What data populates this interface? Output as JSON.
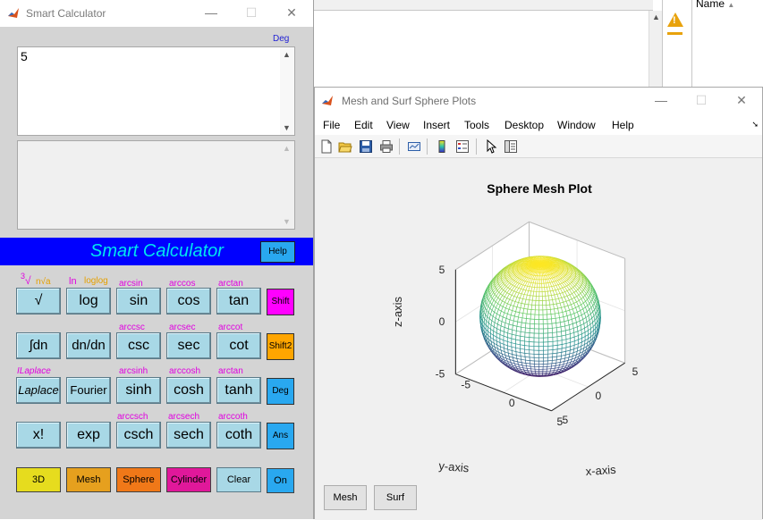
{
  "background_window": {
    "name_header": "Name"
  },
  "calculator": {
    "window_title": "Smart Calculator",
    "angle_mode_indicator": "Deg",
    "input_value": "5",
    "output_value": "",
    "banner_title": "Smart Calculator",
    "help_label": "Help",
    "rows": [
      {
        "labels": [
          "∛  n√a",
          "ln  loglog",
          "arcsin",
          "arccos",
          "arctan"
        ],
        "buttons": [
          "√",
          "log",
          "sin",
          "cos",
          "tan"
        ],
        "side": "Shift"
      },
      {
        "labels": [
          "",
          "",
          "arccsc",
          "arcsec",
          "arccot"
        ],
        "buttons": [
          "∫dn",
          "dn/dn",
          "csc",
          "sec",
          "cot"
        ],
        "side": "Shift2"
      },
      {
        "labels": [
          "ILaplace",
          "",
          "arcsinh",
          "arccosh",
          "arctan"
        ],
        "buttons": [
          "Laplace",
          "Fourier",
          "sinh",
          "cosh",
          "tanh"
        ],
        "side": "Deg"
      },
      {
        "labels": [
          "",
          "",
          "arccsch",
          "arcsech",
          "arccoth"
        ],
        "buttons": [
          "x!",
          "exp",
          "csch",
          "sech",
          "coth"
        ],
        "side": "Ans"
      }
    ],
    "bottom_buttons": [
      {
        "label": "3D",
        "color": "#e6dc1e"
      },
      {
        "label": "Mesh",
        "color": "#e6a01e"
      },
      {
        "label": "Sphere",
        "color": "#f07818"
      },
      {
        "label": "Cylinder",
        "color": "#e0189a"
      },
      {
        "label": "Clear",
        "color": "#a8d8e6"
      },
      {
        "label": "On",
        "color": "#29a8f0"
      }
    ],
    "side_colors": {
      "Shift": "#ff00ff",
      "Shift2": "#ffa500",
      "Deg": "#29a8f0",
      "Ans": "#29a8f0"
    }
  },
  "figure": {
    "window_title": "Mesh and Surf Sphere Plots",
    "menu": [
      "File",
      "Edit",
      "View",
      "Insert",
      "Tools",
      "Desktop",
      "Window",
      "Help"
    ],
    "toolbar_icons": [
      "new-figure-icon",
      "open-icon",
      "save-icon",
      "print-icon",
      "link-plot-icon",
      "colorbar-icon",
      "legend-icon",
      "pointer-icon",
      "property-inspector-icon"
    ],
    "buttons": [
      "Mesh",
      "Surf"
    ]
  },
  "chart_data": {
    "type": "surface-mesh",
    "title": "Sphere Mesh Plot",
    "xlabel": "x-axis",
    "ylabel": "y-axis",
    "zlabel": "z-axis",
    "xlim": [
      -5,
      5
    ],
    "ylim": [
      -5,
      5
    ],
    "zlim": [
      -5,
      5
    ],
    "x_ticks": [
      "-5",
      "0",
      "5"
    ],
    "y_ticks": [
      "-5",
      "0",
      "5"
    ],
    "z_ticks": [
      "-5",
      "0",
      "5"
    ],
    "sphere_radius": 5,
    "colormap": [
      "#440154",
      "#3b528b",
      "#21918c",
      "#5ec962",
      "#fde725"
    ],
    "grid": true
  }
}
